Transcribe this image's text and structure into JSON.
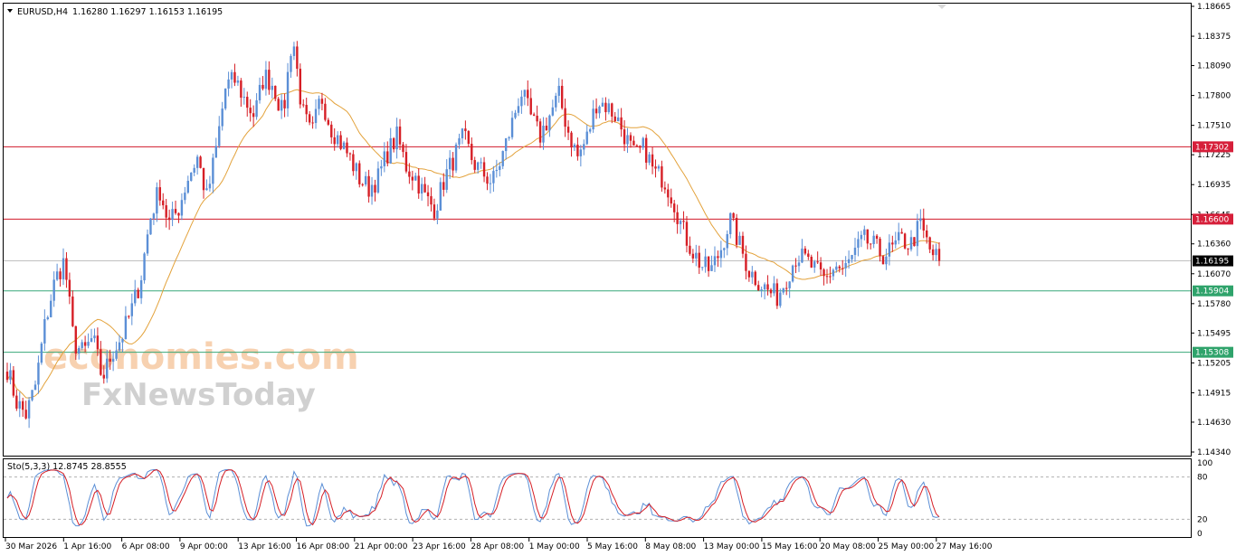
{
  "header": {
    "symbol": "EURUSD,H4",
    "values": "1.16280 1.16297 1.16153 1.16195"
  },
  "price_axis": {
    "ticks": [
      "1.18665",
      "1.18375",
      "1.18090",
      "1.17800",
      "1.17510",
      "1.17225",
      "1.16935",
      "1.16645",
      "1.16360",
      "1.16070",
      "1.15780",
      "1.15495",
      "1.15205",
      "1.14915",
      "1.14630",
      "1.14340"
    ]
  },
  "levels": [
    {
      "label": "1.17302",
      "color": "#d61f3a",
      "line": "#d11a2a"
    },
    {
      "label": "1.16600",
      "color": "#d61f3a",
      "line": "#d11a2a"
    },
    {
      "label": "1.16195",
      "color": "#000000",
      "line": "#c0c0c0"
    },
    {
      "label": "1.15904",
      "color": "#2fa36b",
      "line": "#38a87a"
    },
    {
      "label": "1.15308",
      "color": "#2fa36b",
      "line": "#38a87a"
    }
  ],
  "time_axis": {
    "labels": [
      "30 Mar 2026",
      "1 Apr 16:00",
      "6 Apr 08:00",
      "9 Apr 00:00",
      "13 Apr 16:00",
      "16 Apr 08:00",
      "21 Apr 00:00",
      "23 Apr 16:00",
      "28 Apr 08:00",
      "1 May 00:00",
      "5 May 16:00",
      "8 May 08:00",
      "13 May 00:00",
      "15 May 16:00",
      "20 May 08:00",
      "25 May 00:00",
      "27 May 16:00"
    ]
  },
  "stochastic": {
    "label": "Sto(5,3,3) 12.8745 28.8555",
    "ticks": [
      "100",
      "80",
      "20",
      "0"
    ]
  },
  "watermark": {
    "line1": "economies.com",
    "line2": "FxNewsToday"
  },
  "colors": {
    "bull": "#5b8fd6",
    "bear": "#d61f26",
    "ma": "#e3a23b",
    "stoch_main": "#5b8fd6",
    "stoch_signal": "#d61f26"
  },
  "chart_data": {
    "type": "candlestick",
    "title": "EURUSD,H4",
    "ylim": [
      1.1434,
      1.18665
    ],
    "x_labels": [
      "30 Mar 2026",
      "1 Apr 16:00",
      "6 Apr 08:00",
      "9 Apr 00:00",
      "13 Apr 16:00",
      "16 Apr 08:00",
      "21 Apr 00:00",
      "23 Apr 16:00",
      "28 Apr 08:00",
      "1 May 00:00",
      "5 May 16:00",
      "8 May 08:00",
      "13 May 00:00",
      "15 May 16:00",
      "20 May 08:00",
      "25 May 00:00",
      "27 May 16:00"
    ],
    "close_path": [
      1.1515,
      1.1482,
      1.147,
      1.15,
      1.156,
      1.16,
      1.162,
      1.154,
      1.153,
      1.1545,
      1.1505,
      1.153,
      1.1545,
      1.157,
      1.16,
      1.166,
      1.169,
      1.1655,
      1.167,
      1.17,
      1.172,
      1.168,
      1.173,
      1.179,
      1.1795,
      1.1775,
      1.176,
      1.18,
      1.179,
      1.176,
      1.184,
      1.1765,
      1.174,
      1.178,
      1.175,
      1.1735,
      1.172,
      1.17,
      1.169,
      1.17,
      1.1725,
      1.174,
      1.171,
      1.17,
      1.168,
      1.167,
      1.17,
      1.172,
      1.174,
      1.1715,
      1.1705,
      1.1695,
      1.172,
      1.175,
      1.1785,
      1.176,
      1.174,
      1.176,
      1.178,
      1.1745,
      1.172,
      1.174,
      1.1775,
      1.177,
      1.176,
      1.174,
      1.172,
      1.173,
      1.1705,
      1.17,
      1.168,
      1.165,
      1.163,
      1.1615,
      1.161,
      1.163,
      1.166,
      1.1635,
      1.161,
      1.16,
      1.159,
      1.1585,
      1.1605,
      1.1625,
      1.162,
      1.161,
      1.16,
      1.1615,
      1.161,
      1.1625,
      1.164,
      1.1635,
      1.1625,
      1.163,
      1.164,
      1.1635,
      1.1655,
      1.163,
      1.16195
    ],
    "moving_average": {
      "name": "",
      "color": "#e3a23b"
    },
    "horizontal_levels": [
      1.17302,
      1.166,
      1.16195,
      1.15904,
      1.15308
    ],
    "stochastic_range": [
      0,
      100
    ],
    "stochastic_levels": [
      80,
      20
    ]
  }
}
